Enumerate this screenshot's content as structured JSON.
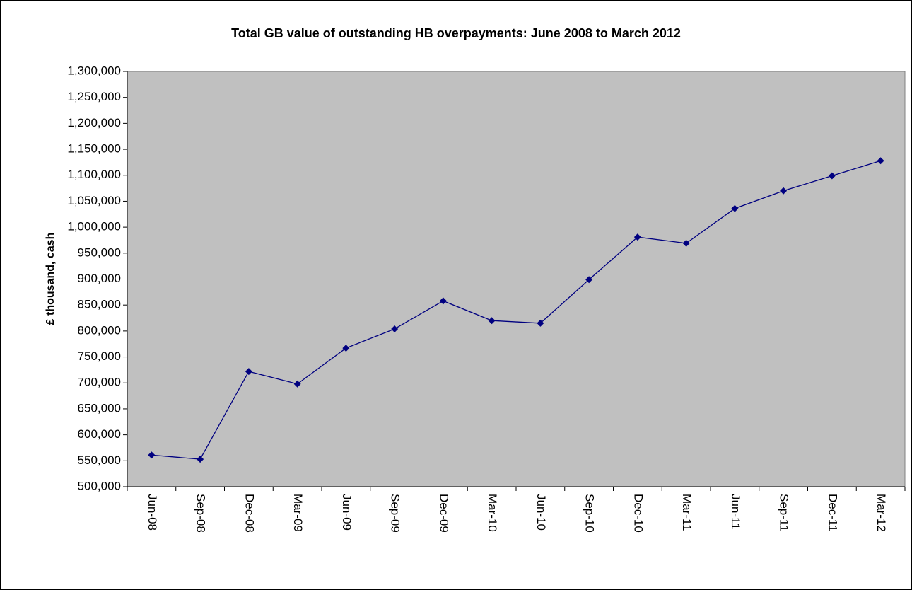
{
  "chart_data": {
    "type": "line",
    "title": "Total GB value of outstanding HB overpayments: June 2008 to March 2012",
    "y_label": "£ thousand, cash",
    "categories": [
      "Jun-08",
      "Sep-08",
      "Dec-08",
      "Mar-09",
      "Jun-09",
      "Sep-09",
      "Dec-09",
      "Mar-10",
      "Jun-10",
      "Sep-10",
      "Dec-10",
      "Mar-11",
      "Jun-11",
      "Sep-11",
      "Dec-11",
      "Mar-12"
    ],
    "series": [
      {
        "name": "Outstanding HB overpayments",
        "color": "#000080",
        "values": [
          561000,
          553000,
          722000,
          698000,
          767000,
          804000,
          858000,
          820000,
          815000,
          899000,
          981000,
          969000,
          1036000,
          1070000,
          1099000,
          1128000
        ]
      }
    ],
    "ylim": [
      500000,
      1300000
    ],
    "yticks": [
      {
        "value": 500000,
        "label": "500,000"
      },
      {
        "value": 550000,
        "label": "550,000"
      },
      {
        "value": 600000,
        "label": "600,000"
      },
      {
        "value": 650000,
        "label": "650,000"
      },
      {
        "value": 700000,
        "label": "700,000"
      },
      {
        "value": 750000,
        "label": "750,000"
      },
      {
        "value": 800000,
        "label": "800,000"
      },
      {
        "value": 850000,
        "label": "850,000"
      },
      {
        "value": 900000,
        "label": "900,000"
      },
      {
        "value": 950000,
        "label": "950,000"
      },
      {
        "value": 1000000,
        "label": "1,000,000"
      },
      {
        "value": 1050000,
        "label": "1,050,000"
      },
      {
        "value": 1100000,
        "label": "1,100,000"
      },
      {
        "value": 1150000,
        "label": "1,150,000"
      },
      {
        "value": 1200000,
        "label": "1,200,000"
      },
      {
        "value": 1250000,
        "label": "1,250,000"
      },
      {
        "value": 1300000,
        "label": "1,300,000"
      }
    ],
    "plot_background": "#c0c0c0",
    "grid": false
  }
}
